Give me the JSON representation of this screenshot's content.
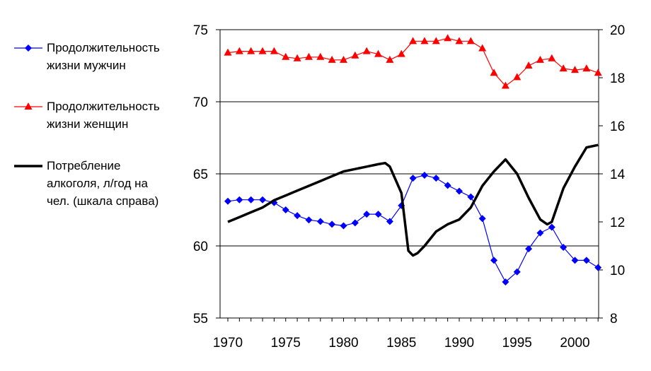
{
  "chart_data": {
    "type": "line",
    "x_ticks": [
      "1970",
      "1975",
      "1980",
      "1985",
      "1990",
      "1995",
      "2000"
    ],
    "y_left_ticks": [
      "55",
      "60",
      "65",
      "70",
      "75"
    ],
    "y_right_ticks": [
      "8",
      "10",
      "12",
      "14",
      "16",
      "18",
      "20"
    ],
    "y_left_range": [
      55,
      75
    ],
    "y_right_range": [
      8,
      20
    ],
    "x_range": [
      1970,
      2003
    ],
    "gridlines_left": [
      60,
      65,
      70,
      75
    ],
    "series": [
      {
        "name_lines": [
          "Продолжительность",
          "жизни мужчин"
        ],
        "axis": "left",
        "color": "#0000ff",
        "marker": "diamond",
        "x": [
          1970,
          1971,
          1972,
          1973,
          1974,
          1975,
          1976,
          1977,
          1978,
          1979,
          1980,
          1981,
          1982,
          1983,
          1984,
          1985,
          1986,
          1987,
          1988,
          1989,
          1990,
          1991,
          1992,
          1993,
          1994,
          1995,
          1996,
          1997,
          1998,
          1999,
          2000,
          2001,
          2002
        ],
        "values": [
          63.1,
          63.2,
          63.2,
          63.2,
          63.0,
          62.5,
          62.1,
          61.8,
          61.7,
          61.5,
          61.4,
          61.6,
          62.2,
          62.2,
          61.7,
          62.8,
          64.7,
          64.9,
          64.7,
          64.2,
          63.8,
          63.4,
          61.9,
          59.0,
          57.5,
          58.2,
          59.8,
          60.9,
          61.3,
          59.9,
          59.0,
          59.0,
          58.5
        ]
      },
      {
        "name_lines": [
          "Продолжительность",
          "жизни женщин"
        ],
        "axis": "left",
        "color": "#ff0000",
        "marker": "triangle",
        "x": [
          1970,
          1971,
          1972,
          1973,
          1974,
          1975,
          1976,
          1977,
          1978,
          1979,
          1980,
          1981,
          1982,
          1983,
          1984,
          1985,
          1986,
          1987,
          1988,
          1989,
          1990,
          1991,
          1992,
          1993,
          1994,
          1995,
          1996,
          1997,
          1998,
          1999,
          2000,
          2001,
          2002
        ],
        "values": [
          73.4,
          73.5,
          73.5,
          73.5,
          73.5,
          73.1,
          73.0,
          73.1,
          73.1,
          72.9,
          72.9,
          73.2,
          73.5,
          73.3,
          72.9,
          73.3,
          74.2,
          74.2,
          74.2,
          74.4,
          74.2,
          74.2,
          73.7,
          72.0,
          71.1,
          71.7,
          72.5,
          72.9,
          73.0,
          72.3,
          72.2,
          72.3,
          72.0
        ]
      },
      {
        "name_lines": [
          "Потребление",
          "алкоголя, л/год на",
          "чел. (шкала справа)"
        ],
        "axis": "right",
        "color": "#000000",
        "marker": "none",
        "x": [
          1970,
          1971,
          1972,
          1973,
          1974,
          1975,
          1976,
          1977,
          1978,
          1979,
          1980,
          1981,
          1982,
          1983,
          1983.6,
          1984,
          1985,
          1985.6,
          1986,
          1986.4,
          1987,
          1988,
          1989,
          1990,
          1991,
          1992,
          1993,
          1994,
          1995,
          1996,
          1997,
          1997.6,
          1998,
          1999,
          2000,
          2001,
          2002
        ],
        "values": [
          12.0,
          12.2,
          12.4,
          12.6,
          12.9,
          13.1,
          13.3,
          13.5,
          13.7,
          13.9,
          14.1,
          14.2,
          14.3,
          14.4,
          14.45,
          14.3,
          13.2,
          10.8,
          10.6,
          10.7,
          11.0,
          11.6,
          11.9,
          12.1,
          12.6,
          13.5,
          14.1,
          14.6,
          14.0,
          13.0,
          12.1,
          11.9,
          12.0,
          13.4,
          14.3,
          15.1,
          15.2
        ]
      }
    ]
  }
}
